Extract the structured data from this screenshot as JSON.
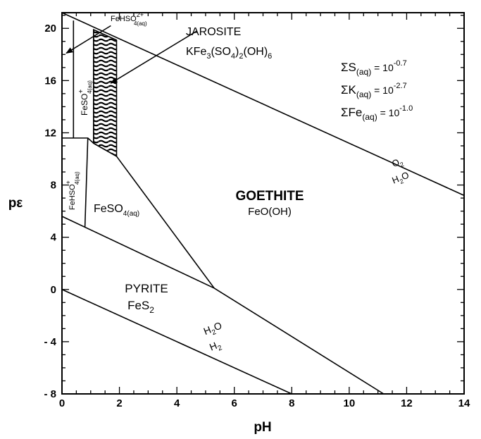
{
  "chart_data": {
    "type": "phase-diagram",
    "xlabel": "pH",
    "ylabel": "pε",
    "xlim": [
      0,
      14
    ],
    "ylim": [
      -8,
      21.2
    ],
    "x_ticks": [
      "0",
      "2",
      "4",
      "6",
      "8",
      "10",
      "12",
      "14"
    ],
    "x_tick_values": [
      0,
      2,
      4,
      6,
      8,
      10,
      12,
      14
    ],
    "y_ticks": [
      "20",
      "16",
      "12",
      "8",
      "4",
      "0",
      "- 4",
      "- 8"
    ],
    "y_tick_values": [
      20,
      16,
      12,
      8,
      4,
      0,
      -4,
      -8
    ],
    "conditions": {
      "s": {
        "prefix": "ΣS",
        "sub": "(aq)",
        "eq": " = 10",
        "exp": "-0.7"
      },
      "k": {
        "prefix": "ΣK",
        "sub": "(aq)",
        "eq": " = 10",
        "exp": "-2.7"
      },
      "fe": {
        "prefix": "ΣFe",
        "sub": "(aq)",
        "eq": " = 10",
        "exp": "-1.0"
      }
    },
    "regions": {
      "goethite": {
        "name": "GOETHITE",
        "formula": "FeO(OH)"
      },
      "pyrite": {
        "name": "PYRITE",
        "formula_main": "FeS",
        "formula_sub": "2"
      },
      "jarosite": {
        "name": "JAROSITE",
        "f1": "KFe",
        "s1": "3",
        "f2": "(SO",
        "s2": "4",
        "f3": ")",
        "s3": "2",
        "f4": "(OH)",
        "s4": "6"
      },
      "feso4": {
        "main": "FeSO",
        "sub": "4(aq)"
      },
      "fehso4_upper": {
        "main": "FeHSO",
        "sub": "4(aq)",
        "sup": "2+"
      },
      "feso4_plus": {
        "main": "FeSO",
        "sup": "+",
        "sub": "4(aq)"
      },
      "fehso4_plus": {
        "main": "FeHSO",
        "sup": "+",
        "sub": "4(aq)"
      }
    },
    "water_lines": {
      "upper_top": {
        "main": "O",
        "sub": "2"
      },
      "upper_bottom": {
        "main": "H",
        "sub": "2",
        "tail": "O"
      },
      "lower_top": {
        "main": "H",
        "sub": "2",
        "tail": "O"
      },
      "lower_bottom": {
        "main": "H",
        "sub": "2"
      }
    },
    "lines": [
      {
        "name": "upper-water-line",
        "points": [
          [
            0,
            21.2
          ],
          [
            14,
            7.2
          ]
        ]
      },
      {
        "name": "lower-water-line",
        "points": [
          [
            0,
            0
          ],
          [
            8,
            -8
          ]
        ]
      },
      {
        "name": "feso4-goethite-lower-line",
        "points": [
          [
            0,
            5.6
          ],
          [
            5.3,
            0.1
          ],
          [
            11.2,
            -8
          ]
        ]
      },
      {
        "name": "jarosite-goethite-line",
        "points": [
          [
            1.9,
            10.2
          ],
          [
            5.3,
            0.1
          ]
        ]
      },
      {
        "name": "fehso4-upper-left-edge",
        "points": [
          [
            0.4,
            20.6
          ],
          [
            0.4,
            11.6
          ]
        ]
      },
      {
        "name": "feso4-plus-right-edge",
        "points": [
          [
            1.1,
            19.9
          ],
          [
            1.1,
            11.2
          ]
        ]
      },
      {
        "name": "feso4-plus-jarosite-bottom",
        "points": [
          [
            1.1,
            11.2
          ],
          [
            1.9,
            10.2
          ]
        ]
      },
      {
        "name": "upper-aqueous-bottom",
        "points": [
          [
            0,
            11.6
          ],
          [
            0.9,
            11.6
          ],
          [
            1.1,
            11.2
          ]
        ]
      },
      {
        "name": "fehso4-plus-right-edge",
        "points": [
          [
            0.9,
            11.6
          ],
          [
            0.8,
            4.8
          ]
        ]
      }
    ],
    "jarosite_field": {
      "points": [
        [
          1.1,
          19.9
        ],
        [
          1.9,
          19.1
        ],
        [
          1.9,
          10.2
        ],
        [
          1.1,
          11.2
        ]
      ]
    },
    "arrows": [
      {
        "name": "fehso4-arrow",
        "from": [
          1.7,
          20.2
        ],
        "to": [
          0.15,
          18.1
        ]
      },
      {
        "name": "jarosite-arrow",
        "from": [
          4.7,
          19.8
        ],
        "to": [
          1.7,
          15.8
        ]
      }
    ]
  }
}
